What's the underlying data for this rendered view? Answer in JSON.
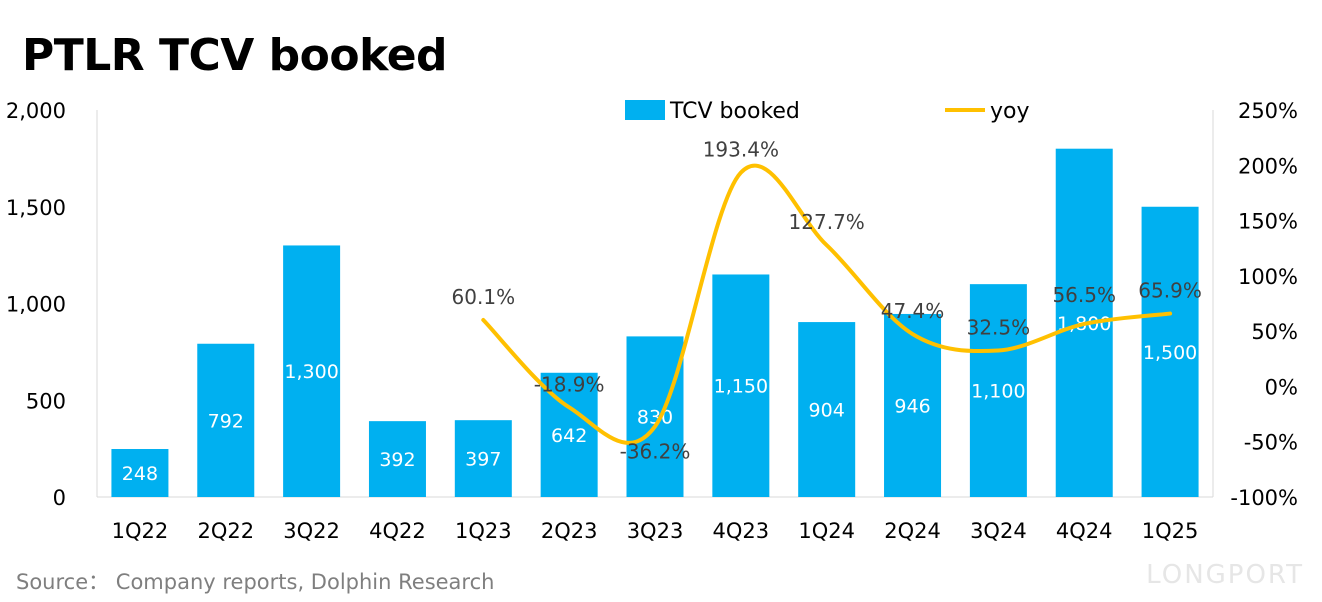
{
  "chart_data": {
    "type": "bar",
    "title": "PTLR TCV booked",
    "categories": [
      "1Q22",
      "2Q22",
      "3Q22",
      "4Q22",
      "1Q23",
      "2Q23",
      "3Q23",
      "4Q23",
      "1Q24",
      "2Q24",
      "3Q24",
      "4Q24",
      "1Q25"
    ],
    "series": [
      {
        "name": "TCV booked",
        "type": "bar",
        "axis": "left",
        "color": "#00B0F0",
        "values": [
          248,
          792,
          1300,
          392,
          397,
          642,
          830,
          1150,
          904,
          946,
          1100,
          1800,
          1500
        ],
        "labels": [
          "248",
          "792",
          "1,300",
          "392",
          "397",
          "642",
          "830",
          "1,150",
          "904",
          "946",
          "1,100",
          "1,800",
          "1,500"
        ]
      },
      {
        "name": "yoy",
        "type": "line",
        "axis": "right",
        "color": "#FFC000",
        "values": [
          null,
          null,
          null,
          null,
          60.1,
          -18.9,
          -36.2,
          193.4,
          127.7,
          47.4,
          32.5,
          56.5,
          65.9
        ],
        "labels": [
          null,
          null,
          null,
          null,
          "60.1%",
          "-18.9%",
          "-36.2%",
          "193.4%",
          "127.7%",
          "47.4%",
          "32.5%",
          "56.5%",
          "65.9%"
        ]
      }
    ],
    "ylim": [
      0,
      2000
    ],
    "yticks": [
      "0",
      "500",
      "1,000",
      "1,500",
      "2,000"
    ],
    "y2lim": [
      -100,
      250
    ],
    "y2ticks": [
      "-100%",
      "-50%",
      "0%",
      "50%",
      "100%",
      "150%",
      "200%",
      "250%"
    ],
    "legend": "top-center",
    "grid": false
  },
  "source": "Source：  Company reports, Dolphin Research",
  "watermark": "LONGPORT"
}
